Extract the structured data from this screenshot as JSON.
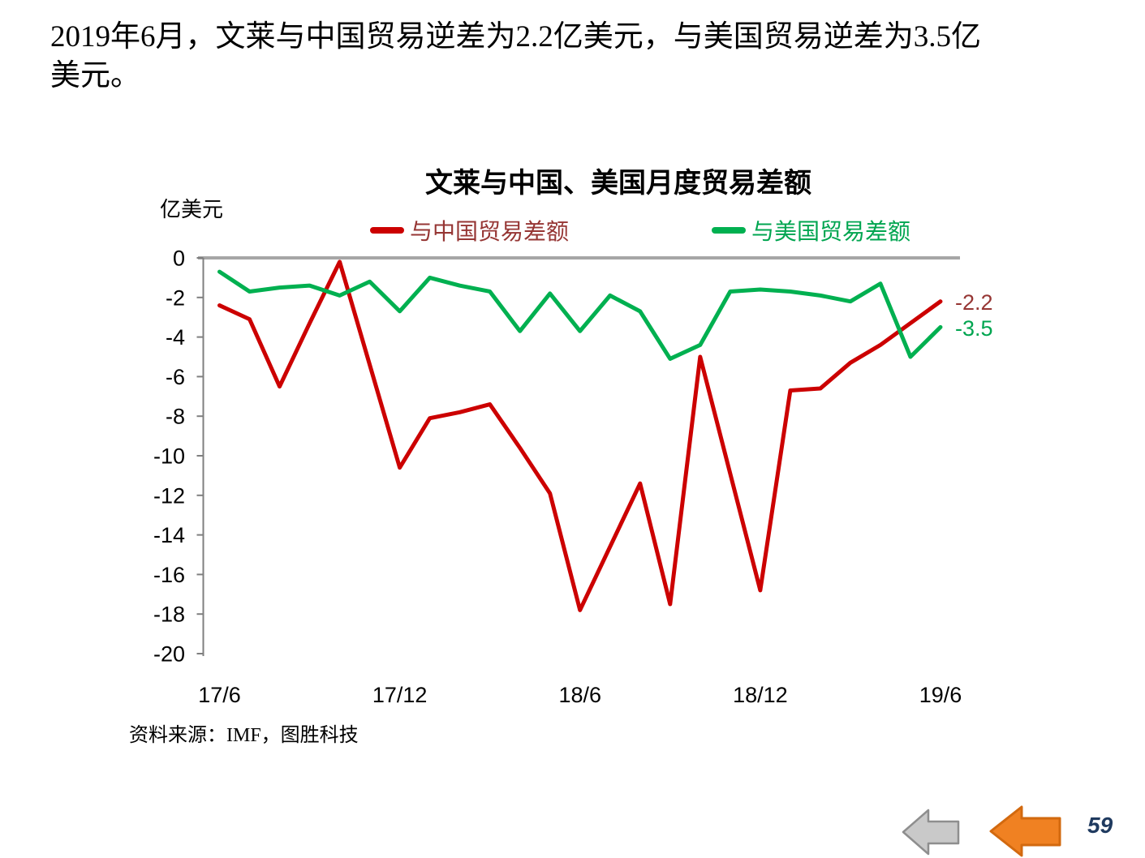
{
  "headline": {
    "line1": "2019年6月，文莱与中国贸易逆差为2.2亿美元，与美国贸易逆差为3.5亿",
    "line2": "美元。"
  },
  "source_note": "资料来源：IMF，图胜科技",
  "page_number": "59",
  "colors": {
    "china_line": "#CC0000",
    "us_line": "#00B050",
    "china_text": "#963634",
    "us_text": "#00A550",
    "zero_line": "#A6A6A6",
    "axis": "#7F7F7F",
    "tick_text": "#000000",
    "page_number": "#1F3A5F",
    "arrow_gray_fill": "#C9C9C9",
    "arrow_gray_stroke": "#8E8E8E",
    "arrow_orange_fill": "#F08122",
    "arrow_orange_stroke": "#D2690F"
  },
  "nav": {
    "gray_arrow": "back-arrow",
    "orange_arrow": "previous-arrow"
  },
  "chart_data": {
    "type": "line",
    "title": "文莱与中国、美国月度贸易差额",
    "unit_label": "亿美元",
    "ylim": [
      -20,
      0
    ],
    "yticks": [
      0,
      -2,
      -4,
      -6,
      -8,
      -10,
      -12,
      -14,
      -16,
      -18,
      -20
    ],
    "grid": "zero-line-only",
    "legend_position": "top",
    "categories": [
      "17/6",
      "17/7",
      "17/8",
      "17/9",
      "17/10",
      "17/11",
      "17/12",
      "18/1",
      "18/2",
      "18/3",
      "18/4",
      "18/5",
      "18/6",
      "18/7",
      "18/8",
      "18/9",
      "18/10",
      "18/11",
      "18/12",
      "19/1",
      "19/2",
      "19/3",
      "19/4",
      "19/5",
      "19/6"
    ],
    "x_tick_labels": [
      {
        "label": "17/6",
        "month_index": 0
      },
      {
        "label": "17/12",
        "month_index": 6
      },
      {
        "label": "18/6",
        "month_index": 12
      },
      {
        "label": "18/12",
        "month_index": 18
      },
      {
        "label": "19/6",
        "month_index": 24
      }
    ],
    "series": [
      {
        "name": "与中国贸易差额",
        "color_key": "china",
        "end_label": "-2.2",
        "values": [
          -2.4,
          -3.1,
          -6.5,
          -3.3,
          -0.2,
          -5.4,
          -10.6,
          -8.1,
          -7.8,
          -7.4,
          -9.6,
          -11.9,
          -17.8,
          -14.6,
          -11.4,
          -17.5,
          -5.0,
          -10.9,
          -16.8,
          -6.7,
          -6.6,
          -5.3,
          -4.4,
          -3.3,
          -2.2
        ]
      },
      {
        "name": "与美国贸易差额",
        "color_key": "us",
        "end_label": "-3.5",
        "values": [
          -0.7,
          -1.7,
          -1.5,
          -1.4,
          -1.9,
          -1.2,
          -2.7,
          -1.0,
          -1.4,
          -1.7,
          -3.7,
          -1.8,
          -3.7,
          -1.9,
          -2.7,
          -5.1,
          -4.4,
          -1.7,
          -1.6,
          -1.7,
          -1.9,
          -2.2,
          -1.3,
          -5.0,
          -3.5
        ]
      }
    ]
  }
}
